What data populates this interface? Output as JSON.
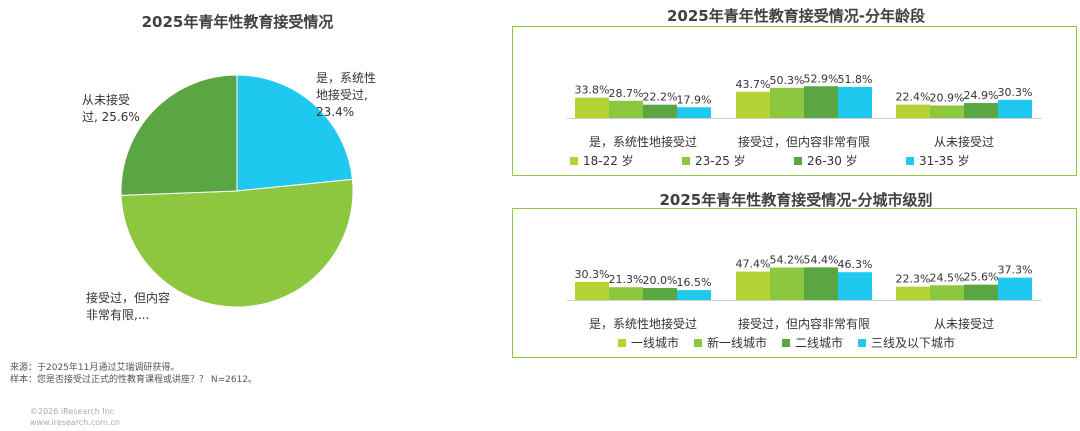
{
  "colors": {
    "s1": "#b5d334",
    "s2": "#8dc63f",
    "s3": "#5aa643",
    "s4": "#1ec8ee",
    "frame": "#8dc63f"
  },
  "chart_data": [
    {
      "type": "pie",
      "title": "2025年青年性教育接受情况",
      "slices": [
        {
          "label": "是，系统性\n地接受过,\n23.4%",
          "value": 23.4,
          "color": "#1ec8ee"
        },
        {
          "label": "接受过，但内容\n非常有限,...",
          "value": 51.0,
          "color": "#8dc63f"
        },
        {
          "label": "从未接受\n过, 25.6%",
          "value": 25.6,
          "color": "#5aa643"
        }
      ]
    },
    {
      "type": "bar",
      "title": "2025年青年性教育接受情况-分年龄段",
      "categories": [
        "是，系统性地接受过",
        "接受过，但内容非常有限",
        "从未接受过"
      ],
      "ylim": [
        0,
        60
      ],
      "legend_position": "bottom",
      "series": [
        {
          "name": "18-22 岁",
          "values": [
            33.8,
            43.7,
            22.4
          ],
          "labels": [
            "33.8%",
            "43.7%",
            "22.4%"
          ]
        },
        {
          "name": "23-25 岁",
          "values": [
            28.7,
            50.3,
            20.9
          ],
          "labels": [
            "28.7%",
            "50.3%",
            "20.9%"
          ]
        },
        {
          "name": "26-30 岁",
          "values": [
            22.2,
            52.9,
            24.9
          ],
          "labels": [
            "22.2%",
            "52.9%",
            "24.9%"
          ]
        },
        {
          "name": "31-35 岁",
          "values": [
            17.9,
            51.8,
            30.3
          ],
          "labels": [
            "17.9%",
            "51.8%",
            "30.3%"
          ]
        }
      ]
    },
    {
      "type": "bar",
      "title": "2025年青年性教育接受情况-分城市级别",
      "categories": [
        "是，系统性地接受过",
        "接受过，但内容非常有限",
        "从未接受过"
      ],
      "ylim": [
        0,
        60
      ],
      "legend_position": "bottom",
      "series": [
        {
          "name": "一线城市",
          "values": [
            30.3,
            47.4,
            22.3
          ],
          "labels": [
            "30.3%",
            "47.4%",
            "22.3%"
          ]
        },
        {
          "name": "新一线城市",
          "values": [
            21.3,
            54.2,
            24.5
          ],
          "labels": [
            "21.3%",
            "54.2%",
            "24.5%"
          ]
        },
        {
          "name": "二线城市",
          "values": [
            20.0,
            54.4,
            25.6
          ],
          "labels": [
            "20.0%",
            "54.4%",
            "25.6%"
          ]
        },
        {
          "name": "三线及以下城市",
          "values": [
            16.5,
            46.3,
            37.3
          ],
          "labels": [
            "16.5%",
            "46.3%",
            "37.3%"
          ]
        }
      ]
    }
  ],
  "footer": {
    "source": "来源：于2025年11月通过艾瑞调研获得。",
    "sample": "样本：您是否接受过正式的性教育课程或讲座？？ N=2612。",
    "copyright": "©2026 iResearch Inc",
    "website": "www.iresearch.com.cn"
  }
}
